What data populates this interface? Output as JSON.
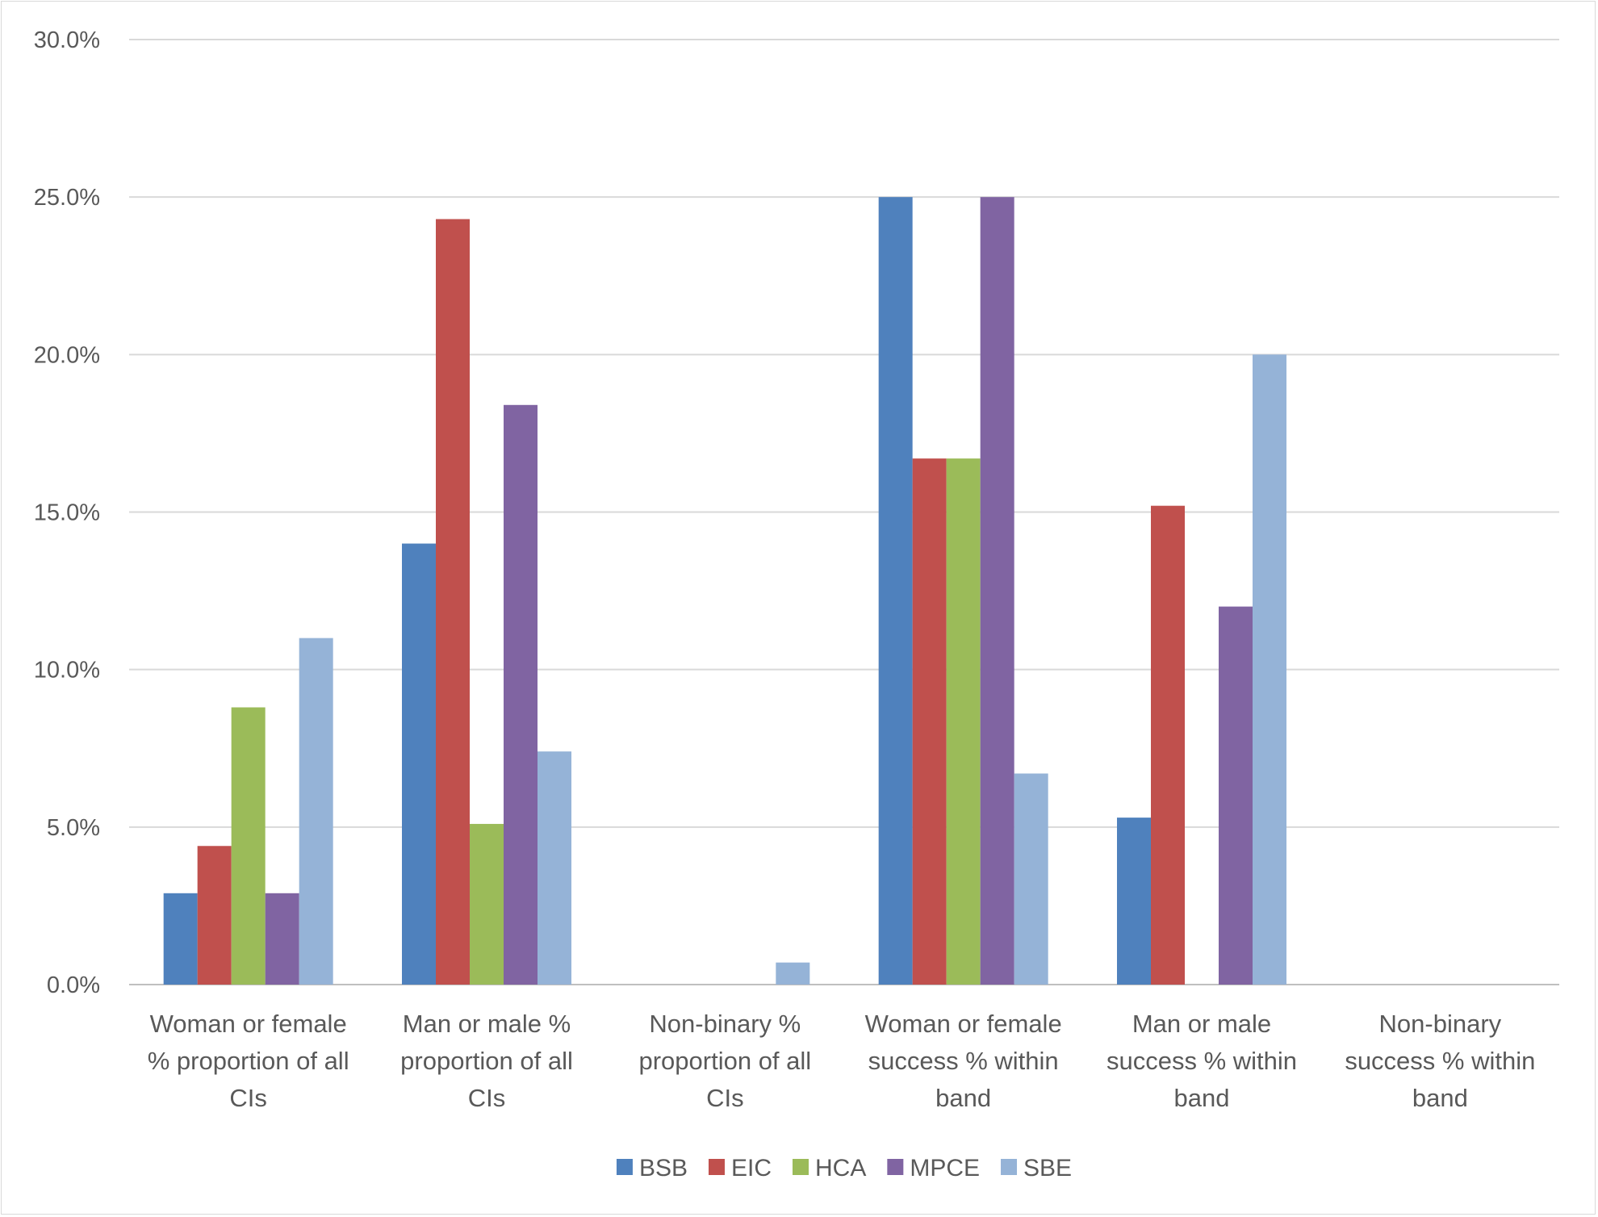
{
  "chart_data": {
    "type": "bar",
    "ylim": [
      0,
      30
    ],
    "y_ticks": [
      "0.0%",
      "5.0%",
      "10.0%",
      "15.0%",
      "20.0%",
      "25.0%",
      "30.0%"
    ],
    "grid": true,
    "legend_position": "bottom",
    "categories": [
      [
        "Woman or female",
        "% proportion of all",
        "CIs"
      ],
      [
        "Man or male %",
        "proportion of all",
        "CIs"
      ],
      [
        "Non-binary %",
        "proportion of all",
        "CIs"
      ],
      [
        "Woman or female",
        "success % within",
        "band"
      ],
      [
        "Man or male",
        "success % within",
        "band"
      ],
      [
        "Non-binary",
        "success % within",
        "band"
      ]
    ],
    "series": [
      {
        "name": "BSB",
        "color": "#4f81bd",
        "values": [
          2.9,
          14.0,
          0,
          25.0,
          5.3,
          0
        ]
      },
      {
        "name": "EIC",
        "color": "#c0504d",
        "values": [
          4.4,
          24.3,
          0,
          16.7,
          15.2,
          0
        ]
      },
      {
        "name": "HCA",
        "color": "#9bbb59",
        "values": [
          8.8,
          5.1,
          0,
          16.7,
          0,
          0
        ]
      },
      {
        "name": "MPCE",
        "color": "#8064a2",
        "values": [
          2.9,
          18.4,
          0,
          25.0,
          12.0,
          0
        ]
      },
      {
        "name": "SBE",
        "color": "#95b3d7",
        "values": [
          11.0,
          7.4,
          0.7,
          6.7,
          20.0,
          0
        ]
      }
    ]
  }
}
